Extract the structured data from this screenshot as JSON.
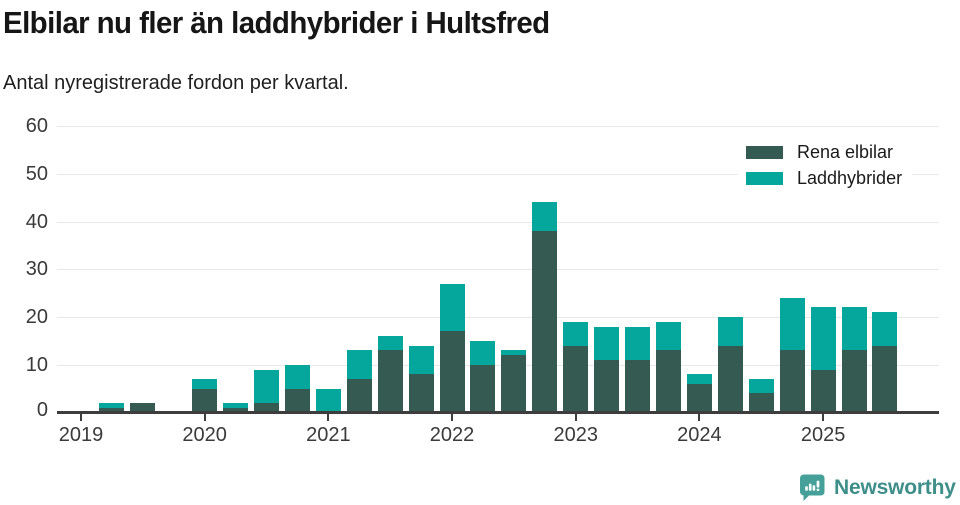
{
  "header": {
    "title": "Elbilar nu fler än laddhybrider i Hultsfred",
    "subtitle": "Antal nyregistrerade fordon per kvartal."
  },
  "colors": {
    "rena_elbilar": "#355a51",
    "laddhybrider": "#05a79c",
    "axis": "#3d3d3d",
    "gridline": "#e8e8e8",
    "tick_label": "#3a3a3a",
    "legend_text": "#1a1a1a",
    "logo_icon": "#45a09a",
    "logo_text": "#3e8e89"
  },
  "chart_data": {
    "type": "bar",
    "stacked": true,
    "grid": true,
    "legend_position": "top-right",
    "ylim": [
      0,
      60
    ],
    "y_ticks": [
      0,
      10,
      20,
      30,
      40,
      50,
      60
    ],
    "categories": [
      "2019 Q1",
      "2019 Q2",
      "2019 Q3",
      "2019 Q4",
      "2020 Q1",
      "2020 Q2",
      "2020 Q3",
      "2020 Q4",
      "2021 Q1",
      "2021 Q2",
      "2021 Q3",
      "2021 Q4",
      "2022 Q1",
      "2022 Q2",
      "2022 Q3",
      "2022 Q4",
      "2023 Q1",
      "2023 Q2",
      "2023 Q3",
      "2023 Q4",
      "2024 Q1",
      "2024 Q2",
      "2024 Q3",
      "2024 Q4",
      "2025 Q1",
      "2025 Q2",
      "2025 Q3"
    ],
    "year_labels": [
      "2019",
      "2020",
      "2021",
      "2022",
      "2023",
      "2024",
      "2025"
    ],
    "series": [
      {
        "name": "Rena elbilar",
        "color": "#355a51",
        "values": [
          0,
          1,
          2,
          0,
          5,
          1,
          2,
          5,
          0,
          7,
          13,
          8,
          17,
          10,
          12,
          38,
          14,
          11,
          11,
          13,
          6,
          14,
          4,
          13,
          9,
          13,
          14
        ]
      },
      {
        "name": "Laddhybrider",
        "color": "#05a79c",
        "values": [
          0,
          1,
          0,
          0,
          2,
          1,
          7,
          5,
          5,
          6,
          3,
          6,
          10,
          5,
          1,
          6,
          5,
          7,
          7,
          6,
          2,
          6,
          3,
          11,
          13,
          9,
          7
        ]
      }
    ],
    "totals": [
      0,
      2,
      2,
      0,
      7,
      2,
      9,
      10,
      5,
      13,
      16,
      14,
      27,
      15,
      13,
      44,
      19,
      18,
      18,
      19,
      8,
      20,
      7,
      24,
      22,
      22,
      21
    ]
  },
  "footer": {
    "brand": "Newsworthy",
    "logo_icon": "bar-chart-speech-bubble-icon"
  }
}
